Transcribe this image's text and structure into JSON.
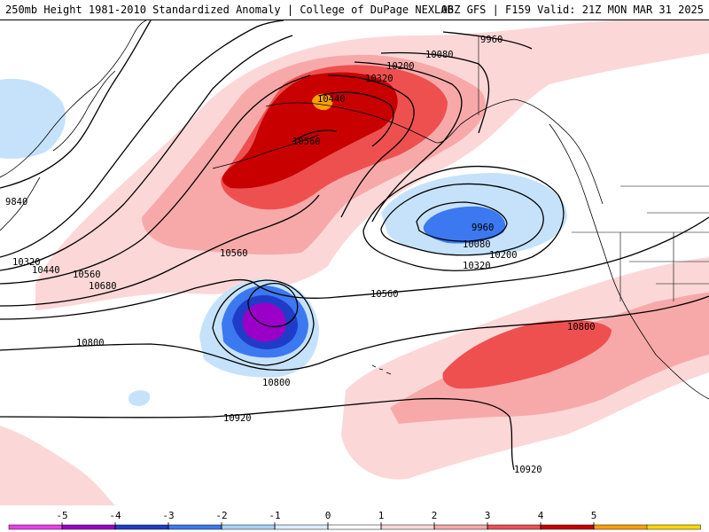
{
  "header": {
    "title_left": "250mb Height 1981-2010 Standardized Anomaly | College of DuPage NEXLAB",
    "title_right": "06Z GFS | F159 Valid: 21Z MON MAR 31 2025"
  },
  "contour_labels": [
    {
      "text": "9960",
      "color": "#000000"
    },
    {
      "text": "10080",
      "color": "#000000"
    },
    {
      "text": "10200",
      "color": "#000000"
    },
    {
      "text": "10320",
      "color": "#000000"
    },
    {
      "text": "10440",
      "color": "#000000"
    },
    {
      "text": "10560",
      "color": "#000000"
    },
    {
      "text": "9840",
      "color": "#000000"
    },
    {
      "text": "10560",
      "color": "#000000"
    },
    {
      "text": "10320",
      "color": "#000000"
    },
    {
      "text": "10440",
      "color": "#000000"
    },
    {
      "text": "10560",
      "color": "#000000"
    },
    {
      "text": "10680",
      "color": "#000000"
    },
    {
      "text": "9960",
      "color": "#000000"
    },
    {
      "text": "10080",
      "color": "#000000"
    },
    {
      "text": "10200",
      "color": "#000000"
    },
    {
      "text": "10320",
      "color": "#000000"
    },
    {
      "text": "10560",
      "color": "#000000"
    },
    {
      "text": "10800",
      "color": "#000000"
    },
    {
      "text": "10800",
      "color": "#000000"
    },
    {
      "text": "10800",
      "color": "#000000"
    },
    {
      "text": "10920",
      "color": "#000000"
    },
    {
      "text": "10920",
      "color": "#000000"
    }
  ],
  "colorbar": {
    "ticks": [
      "-5",
      "-4",
      "-3",
      "-2",
      "-1",
      "0",
      "1",
      "2",
      "3",
      "4",
      "5"
    ],
    "colors": [
      "#ee3cee",
      "#9a00c8",
      "#1f3cc8",
      "#3c78f0",
      "#a8d2fa",
      "#dcecfc",
      "#ffffff",
      "#fcd7d7",
      "#f7a9a9",
      "#ee5050",
      "#c80000",
      "#ffa000",
      "#ffd700"
    ]
  },
  "anomaly_colors": {
    "pos1": "#fcd7d7",
    "pos2": "#f7a9a9",
    "pos3": "#ee5050",
    "pos4": "#c80000",
    "pos5": "#ffa000",
    "neg1": "#c6e2fb",
    "neg2": "#a8d2fa",
    "neg3": "#3c78f0",
    "neg4": "#1f3cc8",
    "neg5": "#9a00c8"
  }
}
